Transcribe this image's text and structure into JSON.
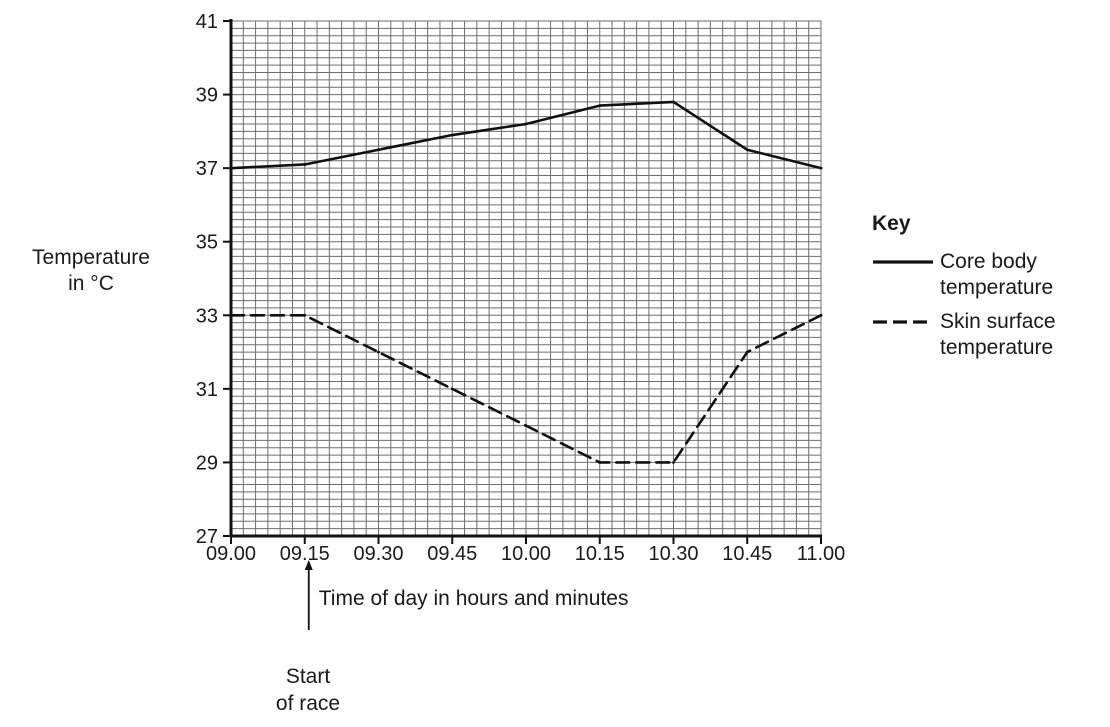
{
  "chart_data": {
    "type": "line",
    "title": "",
    "xlabel": "Time of day in hours and minutes",
    "ylabel": [
      "Temperature",
      "in °C"
    ],
    "categories": [
      "09.00",
      "09.15",
      "09.30",
      "09.45",
      "10.00",
      "10.15",
      "10.30",
      "10.45",
      "11.00"
    ],
    "ylim": [
      27,
      41
    ],
    "yticks": [
      27,
      29,
      31,
      33,
      35,
      37,
      39,
      41
    ],
    "grid": true,
    "legend": {
      "title": "Key",
      "placement": "right",
      "entries": [
        {
          "lines": [
            "Core body",
            "temperature"
          ],
          "style": "solid"
        },
        {
          "lines": [
            "Skin surface",
            "temperature"
          ],
          "style": "dashed"
        }
      ]
    },
    "series": [
      {
        "style": "solid",
        "values": [
          37.0,
          37.1,
          37.5,
          37.9,
          38.2,
          38.7,
          38.8,
          37.5,
          37.0
        ]
      },
      {
        "style": "dashed",
        "values": [
          33.0,
          33.0,
          32.0,
          31.0,
          30.0,
          29.0,
          29.0,
          32.0,
          33.0
        ]
      }
    ],
    "annotation": {
      "lines": [
        "Start",
        "of race"
      ],
      "category": "09.15"
    }
  }
}
